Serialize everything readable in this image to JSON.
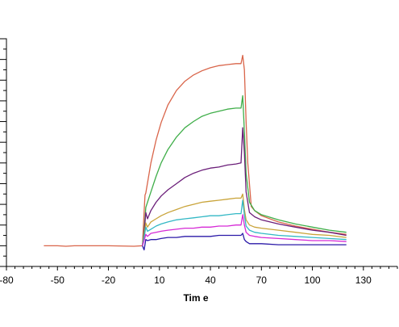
{
  "chart_data": {
    "type": "line",
    "xlabel": "Tim e",
    "x_ticks": [
      -80,
      -50,
      -20,
      10,
      40,
      70,
      100,
      130
    ],
    "xlim": [
      -80,
      150
    ],
    "ylim": [
      -2,
      20
    ],
    "grid": false,
    "legend": "none",
    "series": [
      {
        "color": "#d9654a",
        "points": [
          [
            -58,
            0
          ],
          [
            -50,
            0
          ],
          [
            -45,
            -0.05
          ],
          [
            -40,
            0
          ],
          [
            -20,
            0
          ],
          [
            -5,
            -0.05
          ],
          [
            0,
            0
          ],
          [
            1,
            3.3
          ],
          [
            1.5,
            4.9
          ],
          [
            2,
            5.1
          ],
          [
            5,
            8.0
          ],
          [
            8,
            10.2
          ],
          [
            11,
            11.9
          ],
          [
            15,
            13.6
          ],
          [
            20,
            15.0
          ],
          [
            25,
            15.9
          ],
          [
            30,
            16.5
          ],
          [
            35,
            16.9
          ],
          [
            40,
            17.2
          ],
          [
            45,
            17.4
          ],
          [
            50,
            17.5
          ],
          [
            55,
            17.6
          ],
          [
            58,
            17.6
          ],
          [
            59,
            18.4
          ],
          [
            60,
            17.0
          ],
          [
            61,
            12.0
          ],
          [
            62,
            8.0
          ],
          [
            64,
            3.8
          ],
          [
            66,
            3.4
          ],
          [
            70,
            2.9
          ],
          [
            80,
            2.3
          ],
          [
            90,
            1.9
          ],
          [
            100,
            1.6
          ],
          [
            110,
            1.3
          ],
          [
            120,
            1.1
          ]
        ]
      },
      {
        "color": "#3fae49",
        "points": [
          [
            0,
            0
          ],
          [
            1,
            1.5
          ],
          [
            2,
            3.7
          ],
          [
            3,
            4.2
          ],
          [
            5,
            5.2
          ],
          [
            8,
            6.7
          ],
          [
            11,
            8.0
          ],
          [
            15,
            9.3
          ],
          [
            20,
            10.5
          ],
          [
            25,
            11.4
          ],
          [
            30,
            12.0
          ],
          [
            35,
            12.5
          ],
          [
            40,
            12.8
          ],
          [
            45,
            13.0
          ],
          [
            50,
            13.2
          ],
          [
            55,
            13.3
          ],
          [
            58,
            13.3
          ],
          [
            59,
            14.5
          ],
          [
            60,
            11.0
          ],
          [
            61,
            7.0
          ],
          [
            63,
            4.2
          ],
          [
            66,
            3.4
          ],
          [
            70,
            3.0
          ],
          [
            80,
            2.5
          ],
          [
            90,
            2.1
          ],
          [
            100,
            1.8
          ],
          [
            110,
            1.5
          ],
          [
            120,
            1.3
          ]
        ]
      },
      {
        "color": "#6b1e79",
        "points": [
          [
            0,
            0
          ],
          [
            1,
            1.2
          ],
          [
            2,
            3.2
          ],
          [
            3,
            2.6
          ],
          [
            5,
            3.4
          ],
          [
            8,
            4.2
          ],
          [
            11,
            4.8
          ],
          [
            15,
            5.4
          ],
          [
            20,
            6.0
          ],
          [
            25,
            6.6
          ],
          [
            30,
            7.0
          ],
          [
            35,
            7.3
          ],
          [
            40,
            7.5
          ],
          [
            45,
            7.6
          ],
          [
            50,
            7.8
          ],
          [
            55,
            7.9
          ],
          [
            58,
            8.0
          ],
          [
            59,
            11.4
          ],
          [
            60,
            9.0
          ],
          [
            61,
            5.2
          ],
          [
            63,
            3.2
          ],
          [
            66,
            2.8
          ],
          [
            70,
            2.5
          ],
          [
            80,
            2.1
          ],
          [
            90,
            1.8
          ],
          [
            100,
            1.5
          ],
          [
            110,
            1.3
          ],
          [
            120,
            1.0
          ]
        ]
      },
      {
        "color": "#c9a43a",
        "points": [
          [
            0,
            0
          ],
          [
            1,
            1.0
          ],
          [
            2,
            2.2
          ],
          [
            3,
            1.8
          ],
          [
            5,
            2.3
          ],
          [
            8,
            2.6
          ],
          [
            11,
            2.9
          ],
          [
            15,
            3.2
          ],
          [
            20,
            3.5
          ],
          [
            25,
            3.8
          ],
          [
            30,
            4.0
          ],
          [
            35,
            4.2
          ],
          [
            40,
            4.3
          ],
          [
            45,
            4.4
          ],
          [
            50,
            4.5
          ],
          [
            55,
            4.6
          ],
          [
            58,
            4.6
          ],
          [
            59,
            5.0
          ],
          [
            60,
            3.5
          ],
          [
            61,
            2.5
          ],
          [
            63,
            2.0
          ],
          [
            66,
            1.8
          ],
          [
            70,
            1.7
          ],
          [
            80,
            1.5
          ],
          [
            90,
            1.3
          ],
          [
            100,
            1.1
          ],
          [
            110,
            1.0
          ],
          [
            120,
            0.8
          ]
        ]
      },
      {
        "color": "#33b8c5",
        "points": [
          [
            0,
            0
          ],
          [
            1,
            0.8
          ],
          [
            2,
            1.8
          ],
          [
            3,
            1.4
          ],
          [
            5,
            1.6
          ],
          [
            8,
            1.9
          ],
          [
            11,
            2.1
          ],
          [
            15,
            2.3
          ],
          [
            20,
            2.5
          ],
          [
            25,
            2.6
          ],
          [
            30,
            2.7
          ],
          [
            35,
            2.8
          ],
          [
            40,
            2.9
          ],
          [
            45,
            2.9
          ],
          [
            50,
            3.0
          ],
          [
            55,
            3.1
          ],
          [
            58,
            3.1
          ],
          [
            59,
            4.4
          ],
          [
            60,
            3.0
          ],
          [
            61,
            1.9
          ],
          [
            63,
            1.5
          ],
          [
            66,
            1.3
          ],
          [
            70,
            1.2
          ],
          [
            80,
            1.0
          ],
          [
            90,
            0.9
          ],
          [
            100,
            0.8
          ],
          [
            110,
            0.7
          ],
          [
            120,
            0.6
          ]
        ]
      },
      {
        "color": "#d62ad6",
        "points": [
          [
            0,
            0
          ],
          [
            1,
            0.5
          ],
          [
            2,
            1.1
          ],
          [
            3,
            0.9
          ],
          [
            5,
            1.2
          ],
          [
            8,
            1.3
          ],
          [
            11,
            1.4
          ],
          [
            15,
            1.5
          ],
          [
            20,
            1.6
          ],
          [
            25,
            1.7
          ],
          [
            30,
            1.7
          ],
          [
            35,
            1.8
          ],
          [
            40,
            1.8
          ],
          [
            45,
            1.9
          ],
          [
            50,
            1.9
          ],
          [
            55,
            2.0
          ],
          [
            58,
            2.0
          ],
          [
            59,
            3.0
          ],
          [
            60,
            2.0
          ],
          [
            61,
            1.3
          ],
          [
            63,
            1.0
          ],
          [
            66,
            0.9
          ],
          [
            70,
            0.8
          ],
          [
            80,
            0.7
          ],
          [
            90,
            0.6
          ],
          [
            100,
            0.5
          ],
          [
            110,
            0.5
          ],
          [
            120,
            0.4
          ]
        ]
      },
      {
        "color": "#2b1aa8",
        "points": [
          [
            0,
            0
          ],
          [
            1,
            -0.4
          ],
          [
            2,
            0.6
          ],
          [
            3,
            0.5
          ],
          [
            5,
            0.6
          ],
          [
            8,
            0.6
          ],
          [
            11,
            0.7
          ],
          [
            15,
            0.8
          ],
          [
            20,
            0.8
          ],
          [
            25,
            0.9
          ],
          [
            30,
            0.9
          ],
          [
            35,
            0.9
          ],
          [
            40,
            0.9
          ],
          [
            45,
            1.0
          ],
          [
            50,
            1.0
          ],
          [
            55,
            1.0
          ],
          [
            58,
            1.0
          ],
          [
            59,
            1.2
          ],
          [
            60,
            0.6
          ],
          [
            61,
            0.4
          ],
          [
            63,
            0.2
          ],
          [
            66,
            0.2
          ],
          [
            70,
            0.2
          ],
          [
            80,
            0.1
          ],
          [
            90,
            0.1
          ],
          [
            100,
            0.1
          ],
          [
            110,
            0.1
          ],
          [
            120,
            0.1
          ]
        ]
      }
    ]
  }
}
